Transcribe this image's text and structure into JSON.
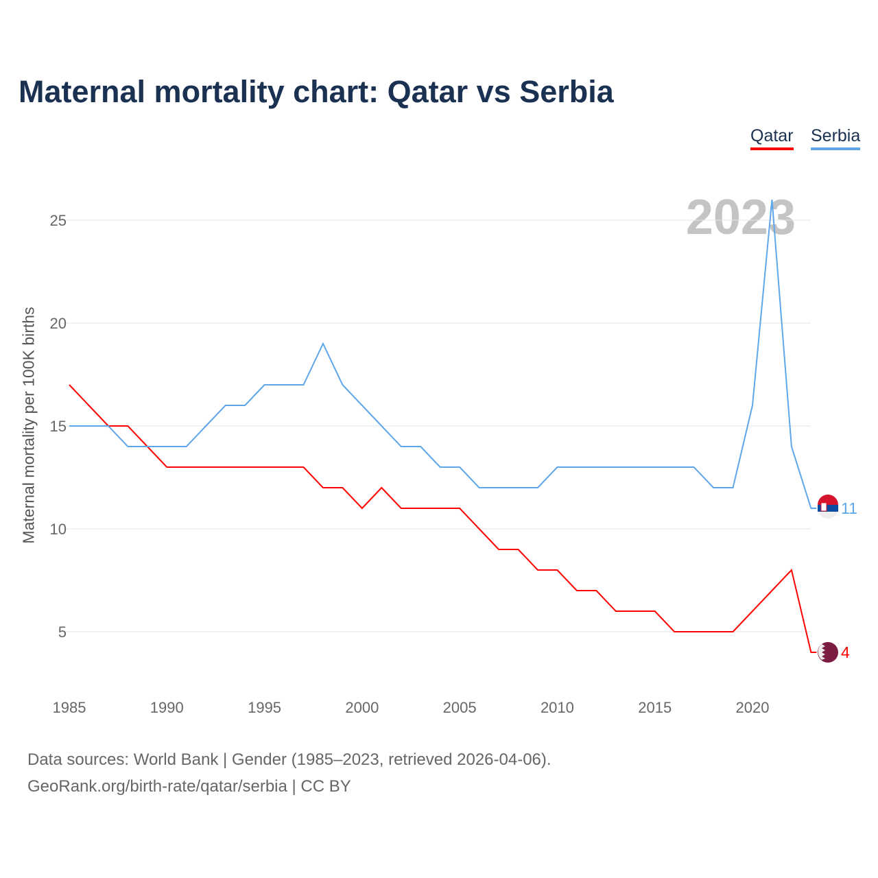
{
  "chart_data": {
    "type": "line",
    "title": "Maternal mortality chart: Qatar vs Serbia",
    "xlabel": "",
    "ylabel": "Maternal mortality per 100K births",
    "year_label": "2023",
    "xlim": [
      1985,
      2023
    ],
    "ylim": [
      2.5,
      27
    ],
    "x_ticks": [
      1985,
      1990,
      1995,
      2000,
      2005,
      2010,
      2015,
      2020
    ],
    "y_ticks": [
      5,
      10,
      15,
      20,
      25
    ],
    "grid": true,
    "legend": "top-right",
    "x": [
      1985,
      1986,
      1987,
      1988,
      1989,
      1990,
      1991,
      1992,
      1993,
      1994,
      1995,
      1996,
      1997,
      1998,
      1999,
      2000,
      2001,
      2002,
      2003,
      2004,
      2005,
      2006,
      2007,
      2008,
      2009,
      2010,
      2011,
      2012,
      2013,
      2014,
      2015,
      2016,
      2017,
      2018,
      2019,
      2020,
      2021,
      2022,
      2023
    ],
    "series": [
      {
        "name": "Qatar",
        "color": "#ff0000",
        "end_label": "4",
        "values": [
          17,
          16,
          15,
          15,
          14,
          13,
          13,
          13,
          13,
          13,
          13,
          13,
          13,
          12,
          12,
          11,
          12,
          11,
          11,
          11,
          11,
          10,
          9,
          9,
          8,
          8,
          7,
          7,
          6,
          6,
          6,
          5,
          5,
          5,
          5,
          6,
          7,
          8,
          4
        ]
      },
      {
        "name": "Serbia",
        "color": "#5ea6ea",
        "end_label": "11",
        "values": [
          15,
          15,
          15,
          14,
          14,
          14,
          14,
          15,
          16,
          16,
          17,
          17,
          17,
          19,
          17,
          16,
          15,
          14,
          14,
          13,
          13,
          12,
          12,
          12,
          12,
          13,
          13,
          13,
          13,
          13,
          13,
          13,
          13,
          12,
          12,
          16,
          26,
          14,
          11
        ]
      }
    ]
  },
  "footer": {
    "source": "Data sources: World Bank | Gender (1985–2023, retrieved 2026-04-06).",
    "credit": "GeoRank.org/birth-rate/qatar/serbia | CC BY"
  }
}
